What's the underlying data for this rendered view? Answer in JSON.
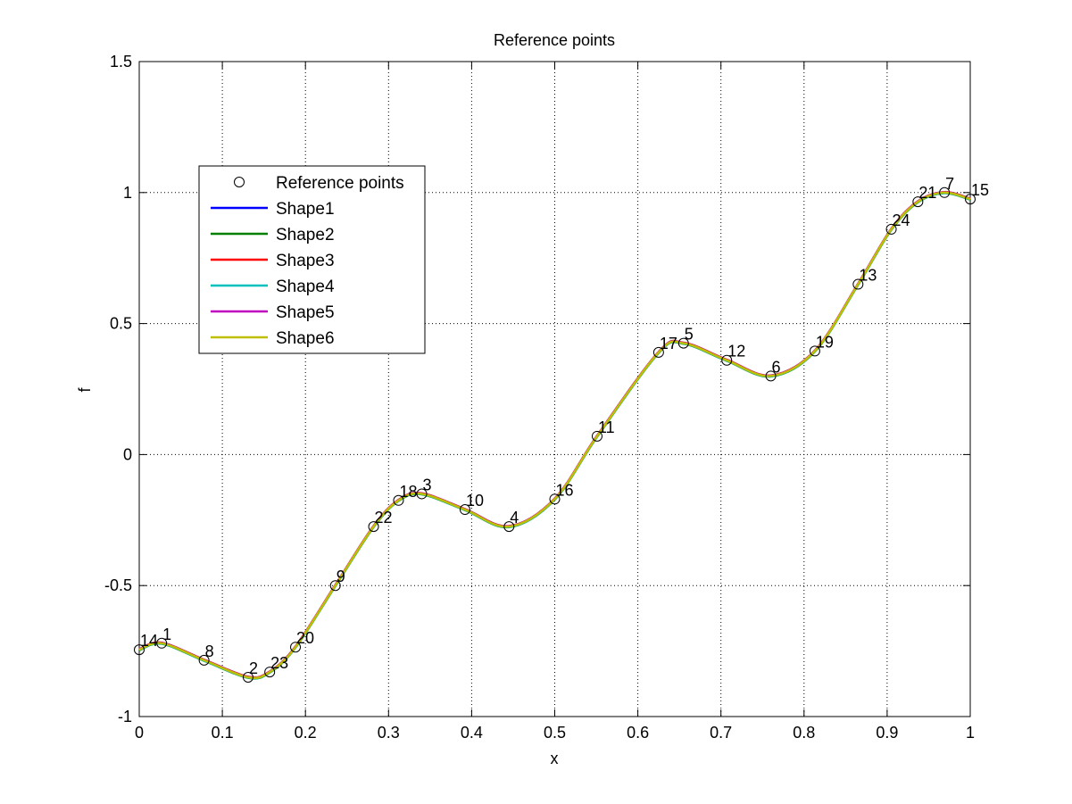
{
  "chart_data": {
    "type": "line",
    "title": "Reference points",
    "xlabel": "x",
    "ylabel": "f",
    "xlim": [
      0,
      1
    ],
    "ylim": [
      -1,
      1.5
    ],
    "xticks": [
      0,
      0.1,
      0.2,
      0.3,
      0.4,
      0.5,
      0.6,
      0.7,
      0.8,
      0.9,
      1
    ],
    "xtick_labels": [
      "0",
      "0.1",
      "0.2",
      "0.3",
      "0.4",
      "0.5",
      "0.6",
      "0.7",
      "0.8",
      "0.9",
      "1"
    ],
    "yticks": [
      -1,
      -0.5,
      0,
      0.5,
      1,
      1.5
    ],
    "ytick_labels": [
      "-1",
      "-0.5",
      "0",
      "0.5",
      "1",
      "1.5"
    ],
    "grid": true,
    "legend_position": "upper-left",
    "reference_points": {
      "name": "Reference points",
      "marker": "open-circle",
      "points": [
        {
          "label": "14",
          "x": 0.0,
          "y": -0.745
        },
        {
          "label": "1",
          "x": 0.027,
          "y": -0.72
        },
        {
          "label": "8",
          "x": 0.078,
          "y": -0.785
        },
        {
          "label": "2",
          "x": 0.131,
          "y": -0.85
        },
        {
          "label": "23",
          "x": 0.157,
          "y": -0.83
        },
        {
          "label": "20",
          "x": 0.188,
          "y": -0.735
        },
        {
          "label": "9",
          "x": 0.236,
          "y": -0.5
        },
        {
          "label": "22",
          "x": 0.282,
          "y": -0.275
        },
        {
          "label": "18",
          "x": 0.312,
          "y": -0.175
        },
        {
          "label": "3",
          "x": 0.34,
          "y": -0.15
        },
        {
          "label": "10",
          "x": 0.392,
          "y": -0.21
        },
        {
          "label": "4",
          "x": 0.445,
          "y": -0.275
        },
        {
          "label": "16",
          "x": 0.5,
          "y": -0.17
        },
        {
          "label": "11",
          "x": 0.551,
          "y": 0.07
        },
        {
          "label": "17",
          "x": 0.625,
          "y": 0.39
        },
        {
          "label": "5",
          "x": 0.655,
          "y": 0.425
        },
        {
          "label": "12",
          "x": 0.707,
          "y": 0.36
        },
        {
          "label": "6",
          "x": 0.76,
          "y": 0.3
        },
        {
          "label": "19",
          "x": 0.813,
          "y": 0.395
        },
        {
          "label": "13",
          "x": 0.865,
          "y": 0.65
        },
        {
          "label": "24",
          "x": 0.905,
          "y": 0.86
        },
        {
          "label": "21",
          "x": 0.937,
          "y": 0.965
        },
        {
          "label": "7",
          "x": 0.969,
          "y": 1.0
        },
        {
          "label": "15",
          "x": 1.0,
          "y": 0.975
        }
      ]
    },
    "series": [
      {
        "name": "Shape1",
        "color": "#0000ff"
      },
      {
        "name": "Shape2",
        "color": "#008000"
      },
      {
        "name": "Shape3",
        "color": "#ff0000"
      },
      {
        "name": "Shape4",
        "color": "#00bfbf"
      },
      {
        "name": "Shape5",
        "color": "#bf00bf"
      },
      {
        "name": "Shape6",
        "color": "#bfbf00"
      }
    ],
    "curve": {
      "x": [
        0,
        0.027,
        0.078,
        0.131,
        0.157,
        0.188,
        0.236,
        0.282,
        0.312,
        0.34,
        0.392,
        0.445,
        0.5,
        0.551,
        0.625,
        0.655,
        0.707,
        0.76,
        0.813,
        0.865,
        0.905,
        0.937,
        0.969,
        1.0
      ],
      "y": [
        -0.745,
        -0.72,
        -0.785,
        -0.85,
        -0.83,
        -0.735,
        -0.5,
        -0.275,
        -0.175,
        -0.15,
        -0.21,
        -0.275,
        -0.17,
        0.07,
        0.39,
        0.425,
        0.36,
        0.3,
        0.395,
        0.65,
        0.86,
        0.965,
        1.0,
        0.975
      ]
    }
  }
}
